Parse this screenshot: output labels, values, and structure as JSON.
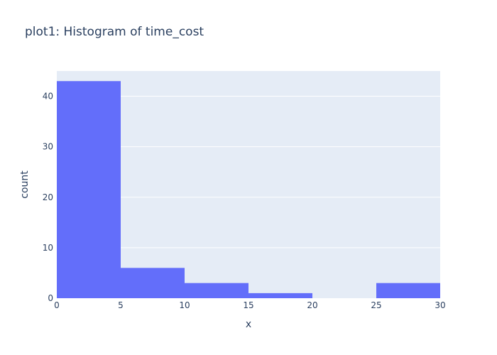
{
  "chart_data": {
    "type": "bar",
    "title": "plot1: Histogram of time_cost",
    "xlabel": "x",
    "ylabel": "count",
    "bins": [
      {
        "start": 0,
        "end": 5,
        "count": 43
      },
      {
        "start": 5,
        "end": 10,
        "count": 6
      },
      {
        "start": 10,
        "end": 15,
        "count": 3
      },
      {
        "start": 15,
        "end": 20,
        "count": 1
      },
      {
        "start": 20,
        "end": 25,
        "count": 0
      },
      {
        "start": 25,
        "end": 30,
        "count": 3
      }
    ],
    "xlim": [
      0,
      30
    ],
    "ylim": [
      0,
      45
    ],
    "x_ticks": [
      0,
      5,
      10,
      15,
      20,
      25,
      30
    ],
    "y_ticks": [
      0,
      10,
      20,
      30,
      40
    ],
    "grid": true,
    "legend": "none",
    "colors": {
      "bar": "#636efa",
      "plot_background": "#e5ecf6",
      "gridline": "#ffffff",
      "text": "#2a3f5f"
    }
  }
}
